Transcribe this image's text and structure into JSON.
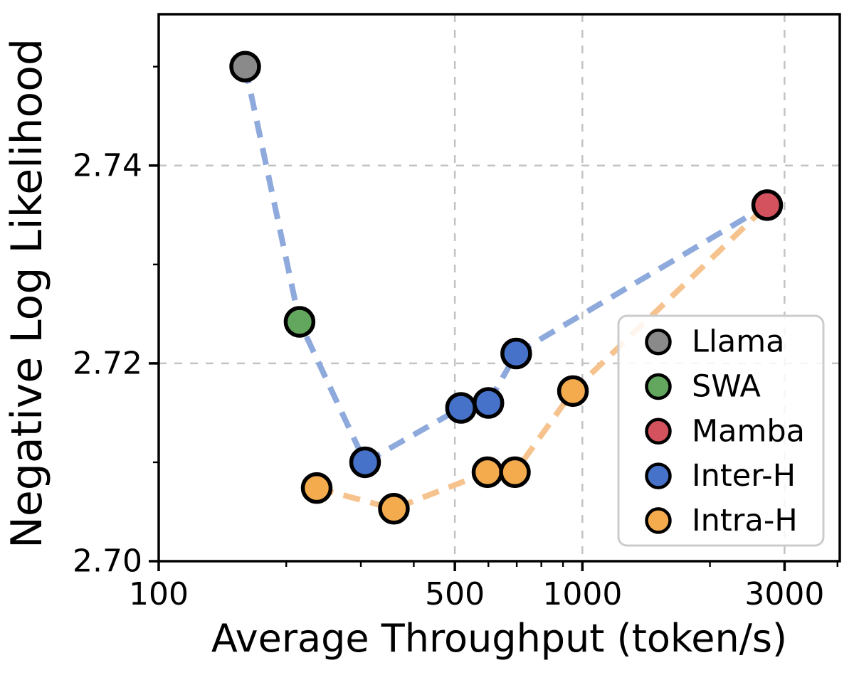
{
  "chart_data": {
    "type": "scatter",
    "title": "",
    "xlabel": "Average Throughput (token/s)",
    "ylabel": "Negative Log Likelihood",
    "x_scale": "log",
    "y_scale": "linear",
    "xlim": [
      100,
      4050
    ],
    "ylim": [
      2.7,
      2.7553
    ],
    "x_ticks": [
      {
        "value": 100,
        "label": "100"
      },
      {
        "value": 500,
        "label": "500"
      },
      {
        "value": 1000,
        "label": "1000"
      },
      {
        "value": 3000,
        "label": "3000"
      }
    ],
    "x_minor_ticks": [
      200,
      300,
      400,
      600,
      700,
      800,
      900,
      2000,
      4000
    ],
    "y_ticks": [
      {
        "value": 2.7,
        "label": "2.70"
      },
      {
        "value": 2.72,
        "label": "2.72"
      },
      {
        "value": 2.74,
        "label": "2.74"
      }
    ],
    "y_minor_ticks": [
      2.71,
      2.73,
      2.75
    ],
    "grid": {
      "style": "dashed",
      "color": "#c3c3c3",
      "x_values": [
        500,
        1000,
        3000
      ],
      "y_values": [
        2.72,
        2.74
      ]
    },
    "marker_edge_color": "#000000",
    "series": [
      {
        "name": "Llama",
        "color": "#8a8a8a",
        "points": [
          {
            "x": 160,
            "y": 2.75
          }
        ]
      },
      {
        "name": "SWA",
        "color": "#63a75f",
        "points": [
          {
            "x": 215,
            "y": 2.7242
          }
        ]
      },
      {
        "name": "Mamba",
        "color": "#d4525e",
        "points": [
          {
            "x": 2730,
            "y": 2.736
          }
        ]
      },
      {
        "name": "Inter-H",
        "color": "#4673c9",
        "points": [
          {
            "x": 307,
            "y": 2.71
          },
          {
            "x": 517,
            "y": 2.7155
          },
          {
            "x": 600,
            "y": 2.716
          },
          {
            "x": 698,
            "y": 2.721
          }
        ]
      },
      {
        "name": "Intra-H",
        "color": "#f4ab4d",
        "points": [
          {
            "x": 236,
            "y": 2.7074
          },
          {
            "x": 359,
            "y": 2.7053
          },
          {
            "x": 597,
            "y": 2.709
          },
          {
            "x": 693,
            "y": 2.709
          },
          {
            "x": 950,
            "y": 2.7172
          }
        ]
      }
    ],
    "frontier_lines": [
      {
        "name": "inter-h-frontier",
        "color": "#8ea9dc",
        "points": [
          {
            "x": 160,
            "y": 2.75
          },
          {
            "x": 215,
            "y": 2.7242
          },
          {
            "x": 307,
            "y": 2.71
          },
          {
            "x": 517,
            "y": 2.7155
          },
          {
            "x": 600,
            "y": 2.716
          },
          {
            "x": 698,
            "y": 2.721
          },
          {
            "x": 2730,
            "y": 2.736
          }
        ]
      },
      {
        "name": "intra-h-frontier",
        "color": "#f6c28d",
        "points": [
          {
            "x": 236,
            "y": 2.7074
          },
          {
            "x": 359,
            "y": 2.7053
          },
          {
            "x": 597,
            "y": 2.709
          },
          {
            "x": 693,
            "y": 2.709
          },
          {
            "x": 950,
            "y": 2.7172
          },
          {
            "x": 2730,
            "y": 2.736
          }
        ]
      }
    ],
    "legend": {
      "position": "lower right",
      "entries": [
        {
          "label": "Llama",
          "color": "#8a8a8a"
        },
        {
          "label": "SWA",
          "color": "#63a75f"
        },
        {
          "label": "Mamba",
          "color": "#d4525e"
        },
        {
          "label": "Inter-H",
          "color": "#4673c9"
        },
        {
          "label": "Intra-H",
          "color": "#f4ab4d"
        }
      ]
    }
  }
}
